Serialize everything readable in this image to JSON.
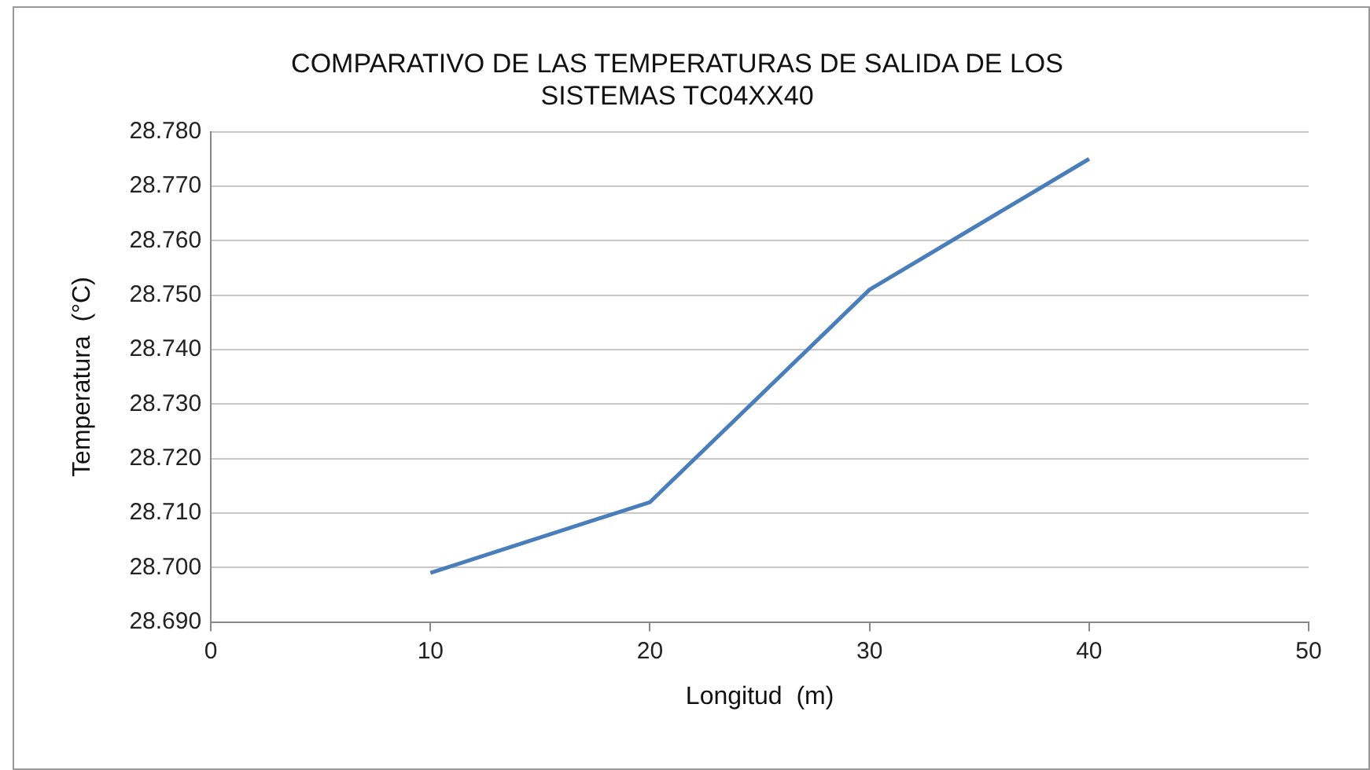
{
  "chart_data": {
    "type": "line",
    "title": "COMPARATIVO DE LAS TEMPERATURAS DE SALIDA DE LOS\nSISTEMAS TC04XX40",
    "xlabel": "Longitud  (m)",
    "ylabel": "Temperatura  (°C)",
    "x": [
      10,
      20,
      30,
      40
    ],
    "series": [
      {
        "color": "#4a7ebb",
        "values": [
          28.699,
          28.712,
          28.751,
          28.775
        ]
      }
    ],
    "xlim": [
      0,
      50
    ],
    "xticks": [
      0,
      10,
      20,
      30,
      40,
      50
    ],
    "ylim": [
      28.69,
      28.78
    ],
    "yticks": [
      {
        "value": 28.69,
        "label": "28.690"
      },
      {
        "value": 28.7,
        "label": "28.700"
      },
      {
        "value": 28.71,
        "label": "28.710"
      },
      {
        "value": 28.72,
        "label": "28.720"
      },
      {
        "value": 28.73,
        "label": "28.730"
      },
      {
        "value": 28.74,
        "label": "28.740"
      },
      {
        "value": 28.75,
        "label": "28.750"
      },
      {
        "value": 28.76,
        "label": "28.760"
      },
      {
        "value": 28.77,
        "label": "28.770"
      },
      {
        "value": 28.78,
        "label": "28.780"
      }
    ],
    "grid": "y",
    "legend": false,
    "marker": "none",
    "line_style": "solid"
  }
}
